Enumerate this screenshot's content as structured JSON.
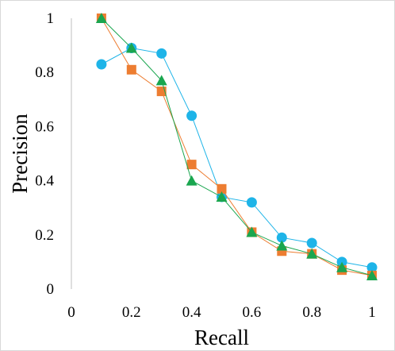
{
  "chart_data": {
    "type": "line",
    "title": "",
    "xlabel": "Recall",
    "ylabel": "Precision",
    "xlim": [
      0,
      1
    ],
    "ylim": [
      0,
      1
    ],
    "x_ticks": [
      "0",
      "0.2",
      "0.4",
      "0.6",
      "0.8",
      "1"
    ],
    "y_ticks": [
      "0",
      "0.2",
      "0.4",
      "0.6",
      "0.8",
      "1"
    ],
    "grid": false,
    "legend": "none",
    "series": [
      {
        "marker": "circle",
        "color": "#1eb4e8",
        "x": [
          0.1,
          0.2,
          0.3,
          0.4,
          0.5,
          0.6,
          0.7,
          0.8,
          0.9,
          1.0
        ],
        "y": [
          0.83,
          0.89,
          0.87,
          0.64,
          0.34,
          0.32,
          0.19,
          0.17,
          0.1,
          0.08
        ]
      },
      {
        "marker": "square",
        "color": "#ed7d31",
        "x": [
          0.1,
          0.2,
          0.3,
          0.4,
          0.5,
          0.6,
          0.7,
          0.8,
          0.9,
          1.0
        ],
        "y": [
          1.0,
          0.81,
          0.73,
          0.46,
          0.37,
          0.21,
          0.14,
          0.13,
          0.07,
          0.05
        ]
      },
      {
        "marker": "triangle",
        "color": "#1aa64f",
        "x": [
          0.1,
          0.2,
          0.3,
          0.4,
          0.5,
          0.6,
          0.7,
          0.8,
          0.9,
          1.0
        ],
        "y": [
          1.0,
          0.89,
          0.77,
          0.4,
          0.34,
          0.21,
          0.16,
          0.13,
          0.08,
          0.05
        ]
      }
    ]
  }
}
